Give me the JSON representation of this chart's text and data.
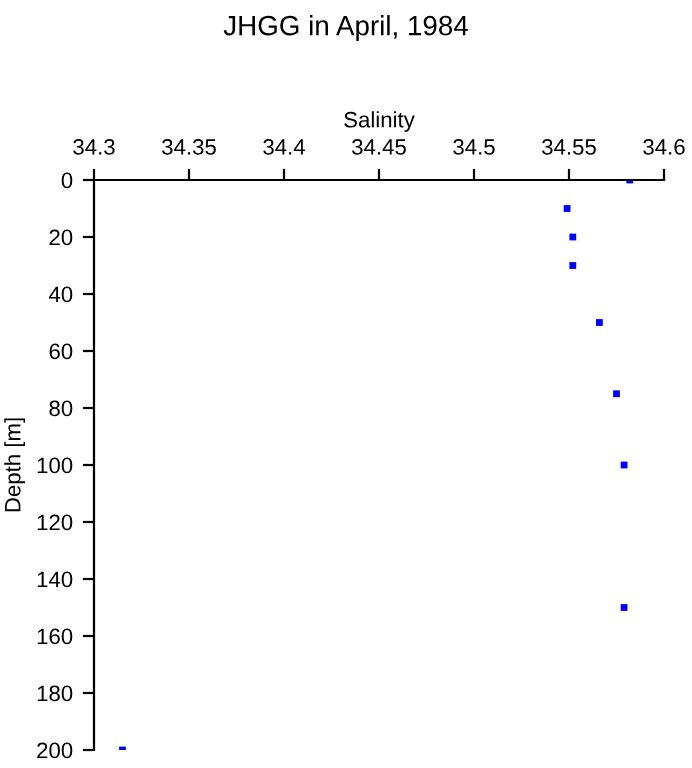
{
  "chart_data": {
    "type": "scatter",
    "title": "JHGG in April, 1984",
    "xlabel": "Salinity",
    "ylabel": "Depth [m]",
    "x": [
      34.582,
      34.549,
      34.552,
      34.552,
      34.566,
      34.575,
      34.579,
      34.579,
      34.315
    ],
    "series": [
      {
        "color": "#0000ff",
        "values": [
          0,
          10,
          20,
          30,
          50,
          75,
          100,
          150,
          200
        ]
      }
    ],
    "xlim": [
      34.3,
      34.6
    ],
    "xticks": [
      34.3,
      34.35,
      34.4,
      34.45,
      34.5,
      34.55,
      34.6
    ],
    "ylim": [
      200,
      0
    ],
    "yticks": [
      0,
      20,
      40,
      60,
      80,
      100,
      120,
      140,
      160,
      180,
      200
    ],
    "marker": "square",
    "grid": false,
    "legend": false
  }
}
